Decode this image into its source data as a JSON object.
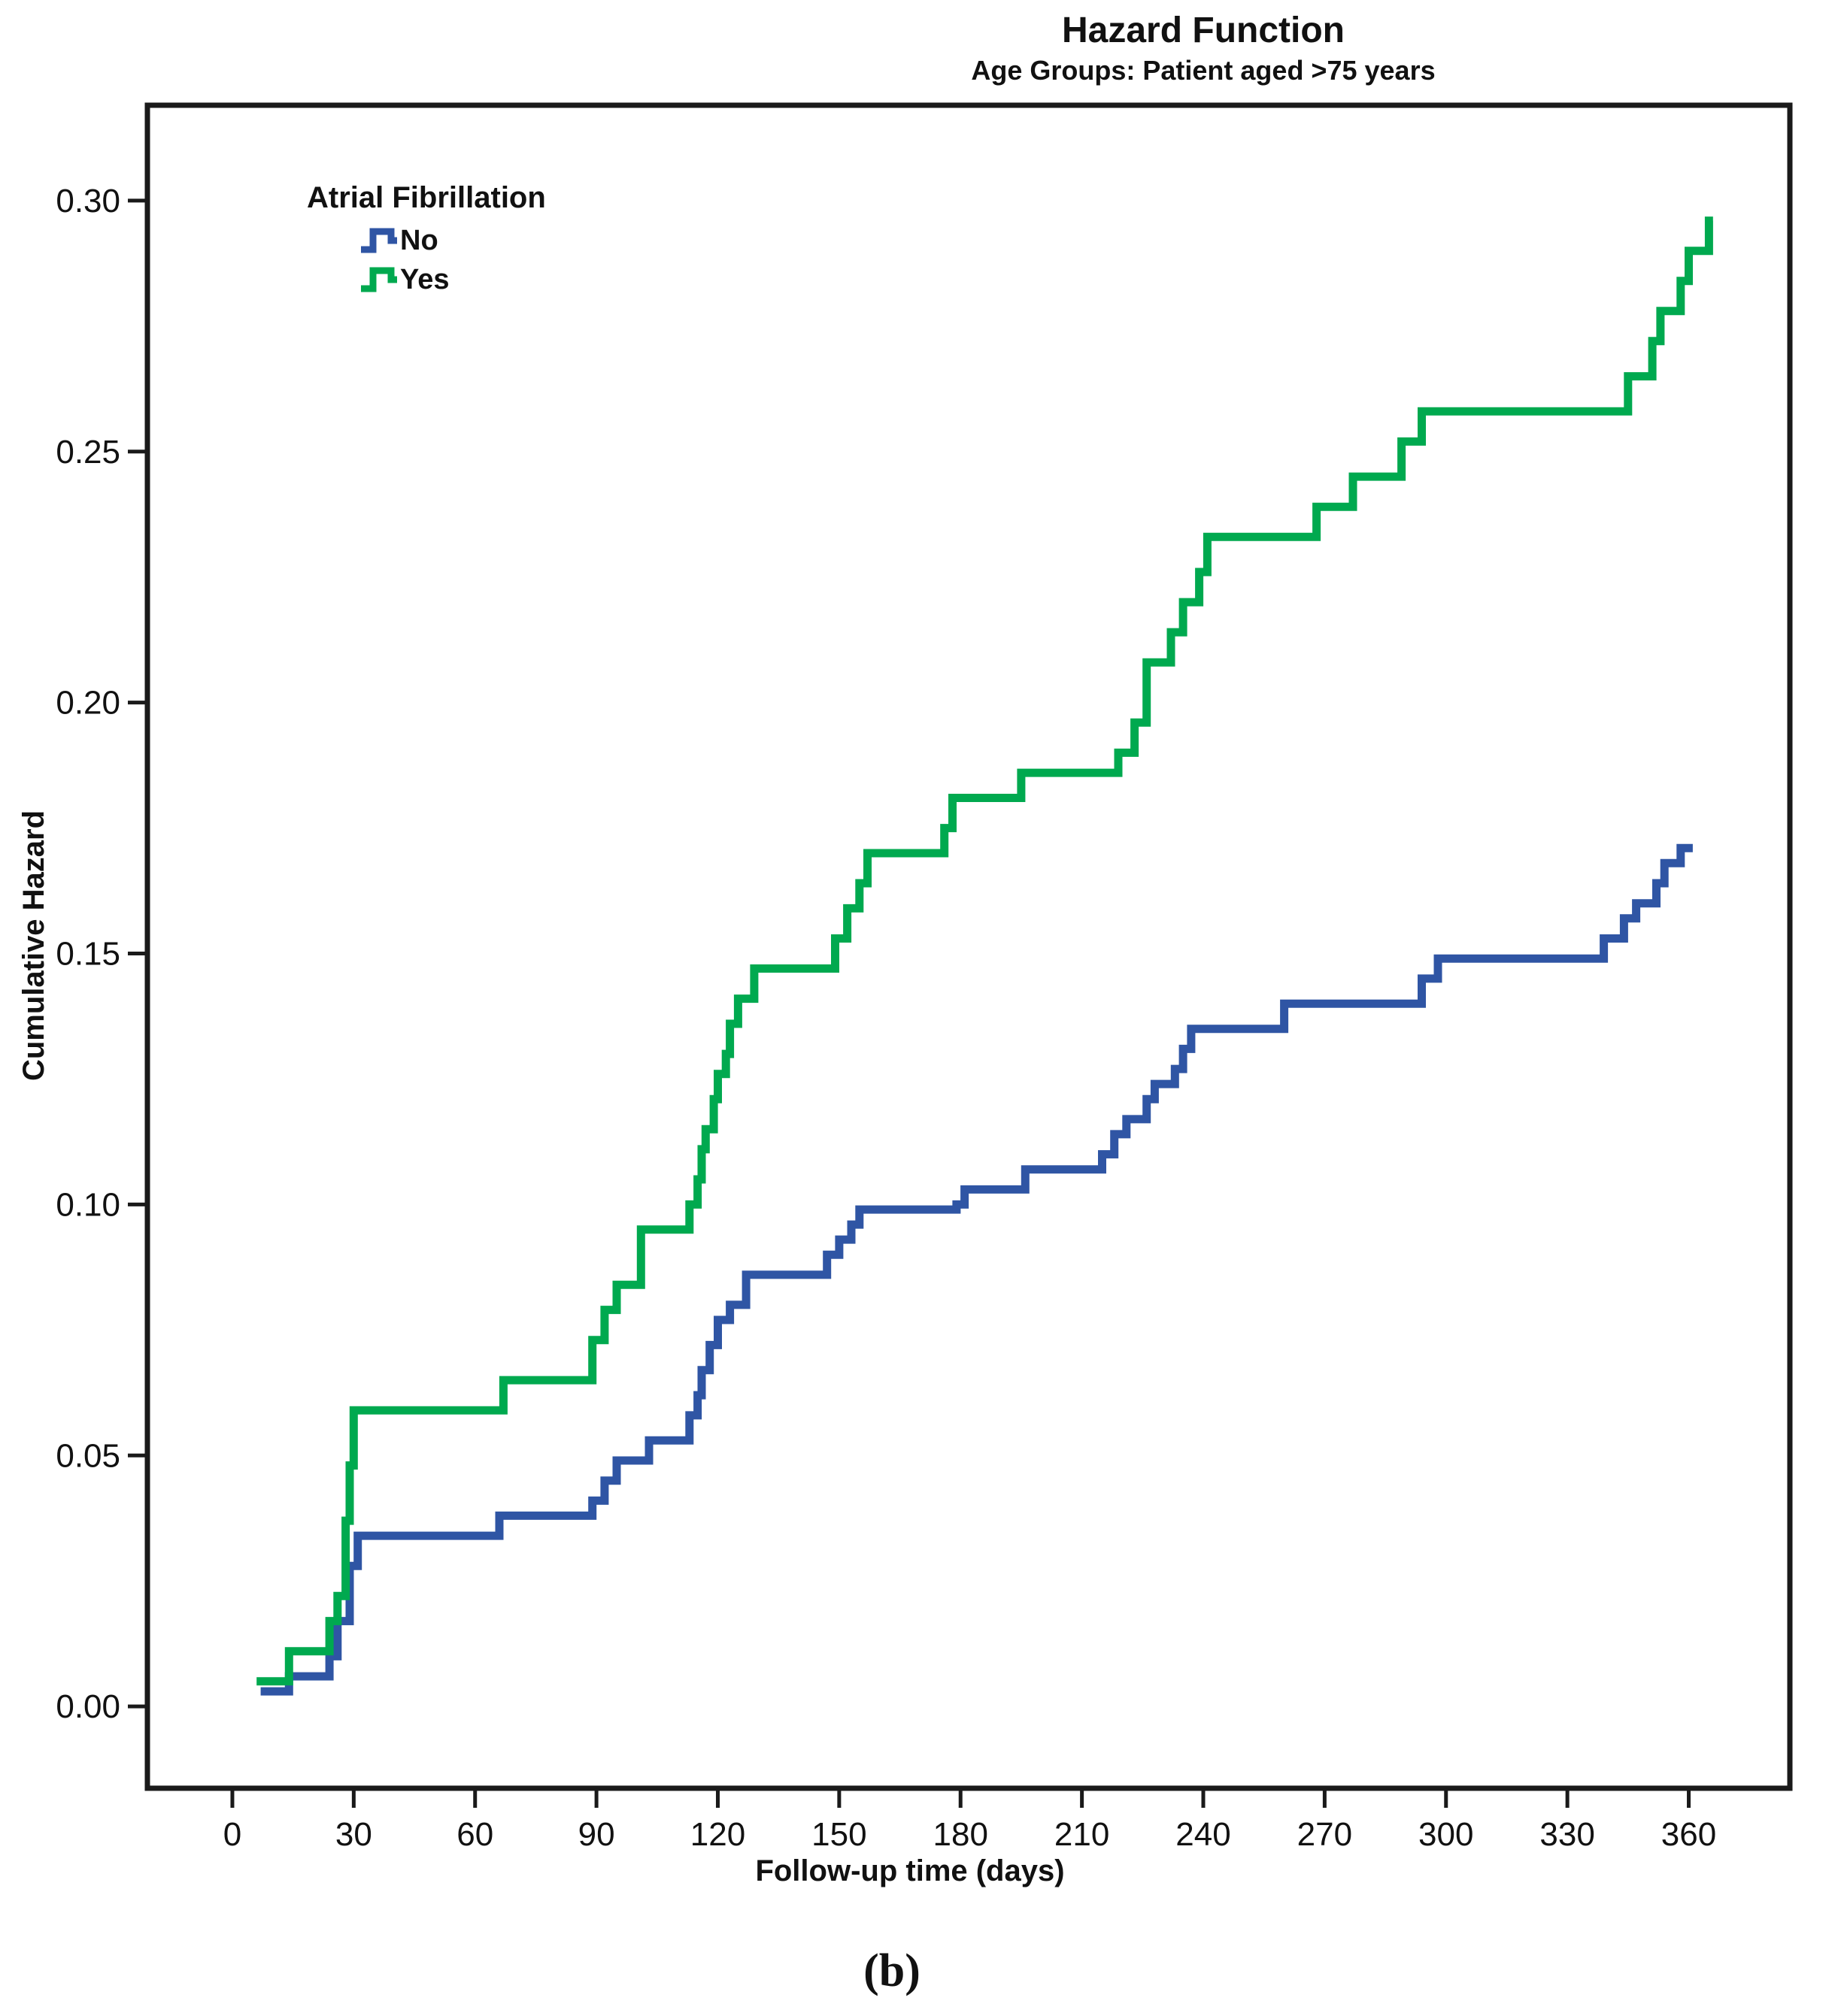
{
  "figure": {
    "caption": "(b)"
  },
  "chart_data": {
    "type": "line",
    "step": true,
    "title": "Hazard Function",
    "subtitle": "Age Groups: Patient aged >75 years",
    "xlabel": "Follow-up time (days)",
    "ylabel": "Cumulative Hazard",
    "xlim": [
      -21,
      385
    ],
    "ylim": [
      -0.0163,
      0.319
    ],
    "grid": false,
    "x_ticks": [
      0,
      30,
      60,
      90,
      120,
      150,
      180,
      210,
      240,
      270,
      300,
      330,
      360
    ],
    "y_ticks": [
      {
        "v": 0.0,
        "label": "0.00"
      },
      {
        "v": 0.05,
        "label": "0.05"
      },
      {
        "v": 0.1,
        "label": "0.10"
      },
      {
        "v": 0.15,
        "label": "0.15"
      },
      {
        "v": 0.2,
        "label": "0.20"
      },
      {
        "v": 0.25,
        "label": "0.25"
      },
      {
        "v": 0.3,
        "label": "0.30"
      }
    ],
    "legend": {
      "title": "Atrial Fibrillation",
      "position": "top-left-inside"
    },
    "series": [
      {
        "name": "No",
        "color": "#2f55a4",
        "end_day": 361,
        "points": [
          [
            7,
            0.003
          ],
          [
            14,
            0.006
          ],
          [
            24,
            0.01
          ],
          [
            26,
            0.017
          ],
          [
            29,
            0.028
          ],
          [
            31,
            0.034
          ],
          [
            66,
            0.038
          ],
          [
            89,
            0.041
          ],
          [
            92,
            0.045
          ],
          [
            95,
            0.049
          ],
          [
            103,
            0.053
          ],
          [
            113,
            0.058
          ],
          [
            115,
            0.062
          ],
          [
            116,
            0.067
          ],
          [
            118,
            0.072
          ],
          [
            120,
            0.077
          ],
          [
            123,
            0.08
          ],
          [
            127,
            0.086
          ],
          [
            147,
            0.09
          ],
          [
            150,
            0.093
          ],
          [
            153,
            0.096
          ],
          [
            155,
            0.099
          ],
          [
            179,
            0.1
          ],
          [
            181,
            0.103
          ],
          [
            196,
            0.107
          ],
          [
            215,
            0.11
          ],
          [
            218,
            0.114
          ],
          [
            221,
            0.117
          ],
          [
            226,
            0.121
          ],
          [
            228,
            0.124
          ],
          [
            233,
            0.127
          ],
          [
            235,
            0.131
          ],
          [
            237,
            0.135
          ],
          [
            260,
            0.14
          ],
          [
            294,
            0.145
          ],
          [
            298,
            0.149
          ],
          [
            339,
            0.153
          ],
          [
            344,
            0.157
          ],
          [
            347,
            0.16
          ],
          [
            352,
            0.164
          ],
          [
            354,
            0.168
          ],
          [
            358,
            0.171
          ]
        ]
      },
      {
        "name": "Yes",
        "color": "#00a94f",
        "end_day": 366,
        "points": [
          [
            6,
            0.005
          ],
          [
            14,
            0.011
          ],
          [
            24,
            0.017
          ],
          [
            26,
            0.022
          ],
          [
            28,
            0.037
          ],
          [
            29,
            0.048
          ],
          [
            30,
            0.059
          ],
          [
            67,
            0.065
          ],
          [
            89,
            0.073
          ],
          [
            92,
            0.079
          ],
          [
            95,
            0.084
          ],
          [
            101,
            0.095
          ],
          [
            113,
            0.1
          ],
          [
            115,
            0.105
          ],
          [
            116,
            0.111
          ],
          [
            117,
            0.115
          ],
          [
            119,
            0.121
          ],
          [
            120,
            0.126
          ],
          [
            122,
            0.13
          ],
          [
            123,
            0.136
          ],
          [
            125,
            0.141
          ],
          [
            129,
            0.147
          ],
          [
            149,
            0.153
          ],
          [
            152,
            0.159
          ],
          [
            155,
            0.164
          ],
          [
            157,
            0.17
          ],
          [
            176,
            0.175
          ],
          [
            178,
            0.181
          ],
          [
            195,
            0.186
          ],
          [
            219,
            0.19
          ],
          [
            223,
            0.196
          ],
          [
            226,
            0.208
          ],
          [
            232,
            0.214
          ],
          [
            235,
            0.22
          ],
          [
            239,
            0.226
          ],
          [
            241,
            0.233
          ],
          [
            268,
            0.239
          ],
          [
            277,
            0.245
          ],
          [
            289,
            0.252
          ],
          [
            294,
            0.258
          ],
          [
            345,
            0.265
          ],
          [
            351,
            0.272
          ],
          [
            353,
            0.278
          ],
          [
            358,
            0.284
          ],
          [
            360,
            0.29
          ],
          [
            365,
            0.296
          ]
        ]
      }
    ]
  }
}
